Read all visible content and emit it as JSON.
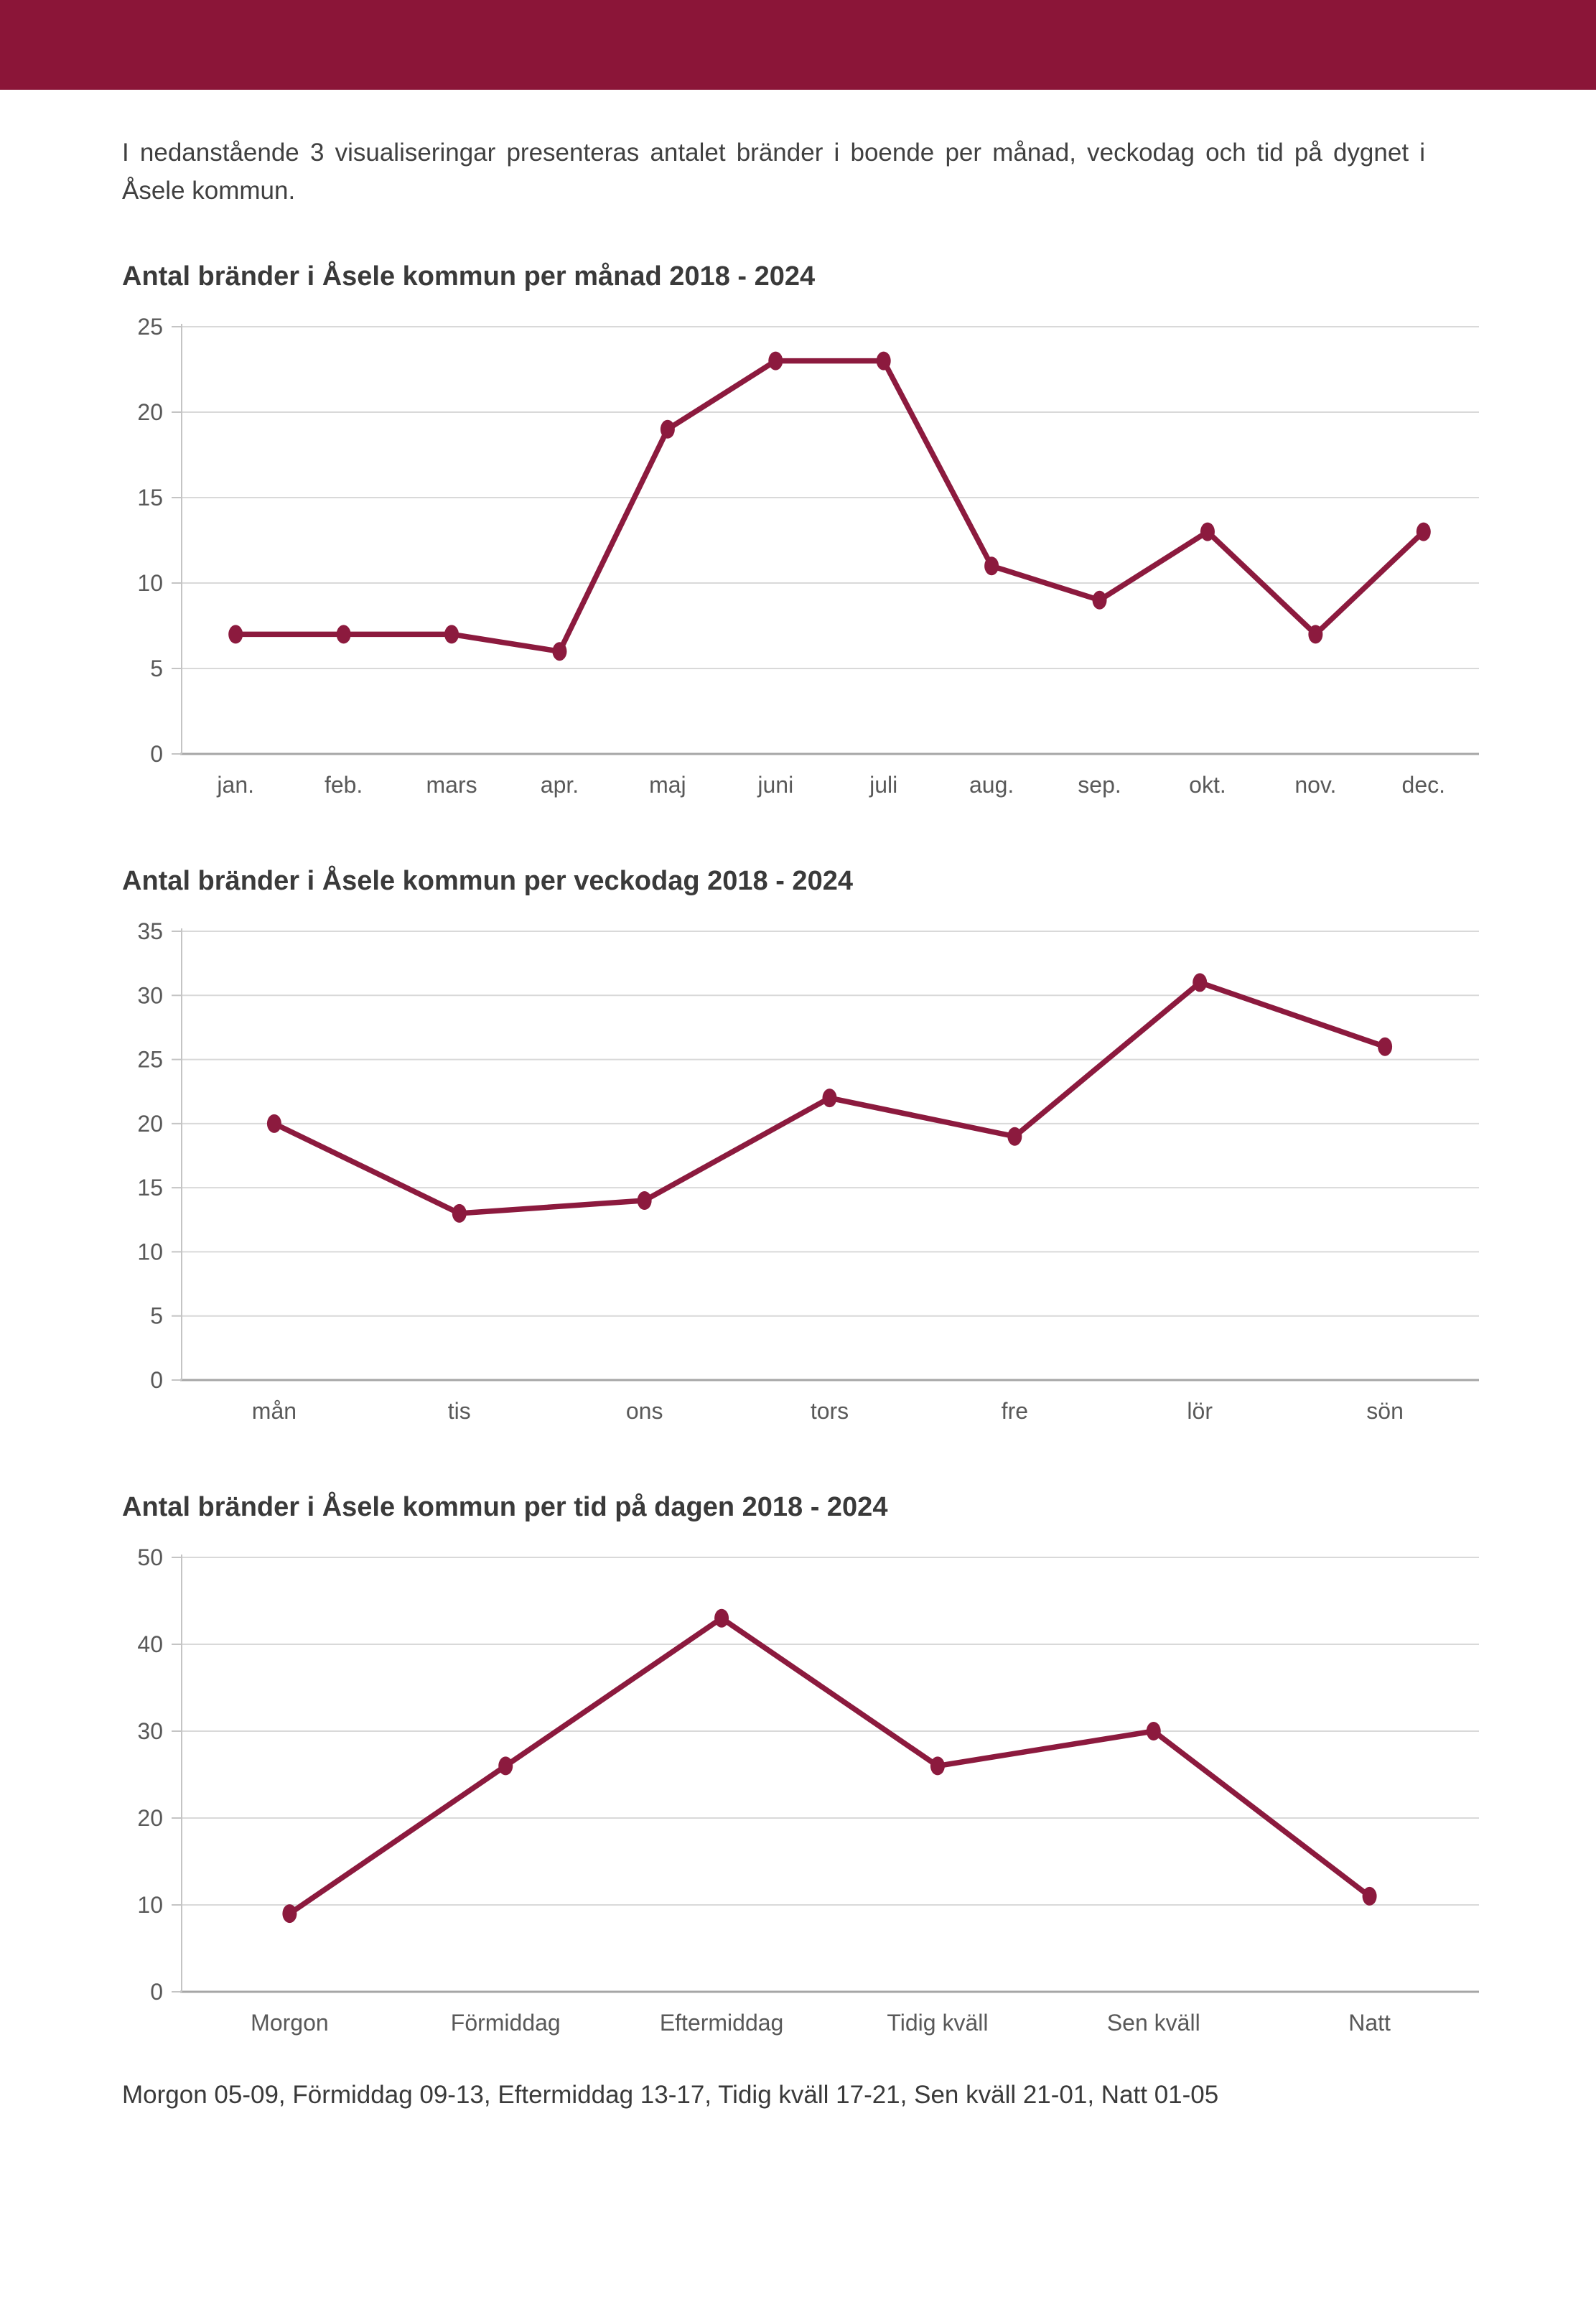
{
  "page": {
    "top_bar_color": "#8B1538",
    "background": "#ffffff"
  },
  "intro": {
    "text": "I nedanstående 3 visualiseringar presenteras antalet bränder i boende per månad, veckodag och tid på dygnet i Åsele kommun."
  },
  "caption": {
    "text": "Morgon 05-09, Förmiddag 09-13, Eftermiddag 13-17, Tidig kväll 17-21, Sen kväll 21-01, Natt 01-05"
  },
  "chart_style": {
    "line_color": "#8C1A3E",
    "marker_color": "#8C1A3E",
    "grid_color": "#D9D9D9",
    "axis_color": "#A6A6A6",
    "tick_color": "#C4C4C4",
    "tick_label_color": "#595959"
  },
  "chart_data": [
    {
      "type": "line",
      "title": "Antal bränder i Åsele kommun per månad 2018 - 2024",
      "categories": [
        "jan.",
        "feb.",
        "mars",
        "apr.",
        "maj",
        "juni",
        "juli",
        "aug.",
        "sep.",
        "okt.",
        "nov.",
        "dec."
      ],
      "values": [
        7,
        7,
        7,
        6,
        19,
        23,
        23,
        11,
        9,
        13,
        7,
        13
      ],
      "xlabel": "",
      "ylabel": "",
      "ylim": [
        0,
        25
      ],
      "ytick_step": 5,
      "grid": true,
      "legend": "none"
    },
    {
      "type": "line",
      "title": "Antal bränder i Åsele kommun per veckodag 2018 - 2024",
      "categories": [
        "mån",
        "tis",
        "ons",
        "tors",
        "fre",
        "lör",
        "sön"
      ],
      "values": [
        20,
        13,
        14,
        22,
        19,
        31,
        26
      ],
      "xlabel": "",
      "ylabel": "",
      "ylim": [
        0,
        35
      ],
      "ytick_step": 5,
      "grid": true,
      "legend": "none"
    },
    {
      "type": "line",
      "title": "Antal bränder i Åsele kommun per tid på dagen 2018 - 2024",
      "categories": [
        "Morgon",
        "Förmiddag",
        "Eftermiddag",
        "Tidig kväll",
        "Sen kväll",
        "Natt"
      ],
      "values": [
        9,
        26,
        43,
        26,
        30,
        11
      ],
      "xlabel": "",
      "ylabel": "",
      "ylim": [
        0,
        50
      ],
      "ytick_step": 10,
      "grid": true,
      "legend": "none"
    }
  ]
}
